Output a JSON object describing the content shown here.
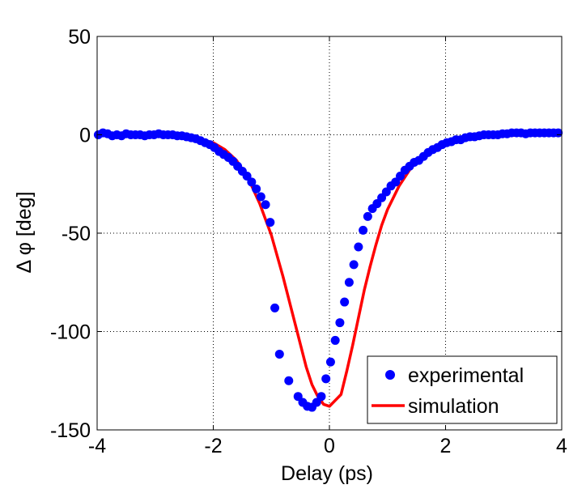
{
  "chart_data": {
    "type": "line",
    "title": "",
    "xlabel": "Delay (ps)",
    "ylabel": "Δ φ [deg]",
    "xlim": [
      -4,
      4
    ],
    "ylim": [
      -150,
      50
    ],
    "xticks": [
      -4,
      -2,
      0,
      2,
      4
    ],
    "yticks": [
      50,
      0,
      -50,
      -100,
      -150
    ],
    "grid": true,
    "legend_position": "bottom-right",
    "colors": {
      "experimental": "#0000ff",
      "simulation": "#ff0000"
    },
    "series": [
      {
        "name": "experimental",
        "style": "markers",
        "x": [
          -3.98,
          -3.9,
          -3.82,
          -3.74,
          -3.66,
          -3.58,
          -3.5,
          -3.42,
          -3.34,
          -3.26,
          -3.18,
          -3.1,
          -3.02,
          -2.94,
          -2.86,
          -2.78,
          -2.7,
          -2.62,
          -2.54,
          -2.46,
          -2.38,
          -2.3,
          -2.22,
          -2.14,
          -2.06,
          -1.98,
          -1.9,
          -1.82,
          -1.74,
          -1.66,
          -1.58,
          -1.5,
          -1.42,
          -1.34,
          -1.26,
          -1.18,
          -1.1,
          -1.02,
          -0.94,
          -0.86,
          -0.7,
          -0.54,
          -0.46,
          -0.38,
          -0.3,
          -0.22,
          -0.14,
          -0.06,
          0.02,
          0.1,
          0.18,
          0.26,
          0.34,
          0.42,
          0.5,
          0.58,
          0.66,
          0.74,
          0.82,
          0.9,
          0.98,
          1.06,
          1.14,
          1.22,
          1.3,
          1.38,
          1.46,
          1.54,
          1.62,
          1.7,
          1.78,
          1.86,
          1.94,
          2.02,
          2.1,
          2.18,
          2.26,
          2.34,
          2.42,
          2.5,
          2.58,
          2.66,
          2.74,
          2.82,
          2.9,
          2.98,
          3.06,
          3.14,
          3.22,
          3.3,
          3.38,
          3.46,
          3.54,
          3.62,
          3.7,
          3.78,
          3.86,
          3.94
        ],
        "y": [
          0,
          1,
          0.5,
          -0.5,
          0,
          -0.5,
          0.5,
          0,
          0,
          0,
          -0.5,
          0,
          0,
          0.5,
          0,
          0,
          0,
          -0.5,
          -0.5,
          -1,
          -1.5,
          -2,
          -3,
          -4,
          -5,
          -6.5,
          -8.5,
          -10,
          -11.5,
          -13.5,
          -16,
          -18.5,
          -21,
          -24,
          -27.5,
          -31.5,
          -35.5,
          -44.5,
          -88,
          -111.5,
          -125,
          -133,
          -136,
          -138,
          -138.5,
          -136,
          -133,
          -124,
          -115.5,
          -104.5,
          -95.5,
          -85,
          -75,
          -66,
          -57,
          -48.5,
          -41.5,
          -37.5,
          -35,
          -32,
          -29,
          -26,
          -24,
          -21,
          -18,
          -16,
          -14,
          -13,
          -11,
          -9,
          -7.5,
          -6.5,
          -5,
          -4,
          -3.5,
          -2.5,
          -2.5,
          -1.5,
          -1,
          -1,
          -0.5,
          0,
          0,
          0,
          0,
          0.5,
          0.5,
          1,
          1,
          1,
          0.5,
          1,
          1,
          1,
          1,
          1,
          1,
          1
        ]
      },
      {
        "name": "simulation",
        "style": "line",
        "x": [
          -4.0,
          -3.5,
          -3.0,
          -2.5,
          -2.2,
          -2.0,
          -1.8,
          -1.6,
          -1.4,
          -1.2,
          -1.0,
          -0.8,
          -0.6,
          -0.4,
          -0.3,
          -0.2,
          -0.1,
          0.0,
          0.1,
          0.2,
          0.3,
          0.4,
          0.5,
          0.6,
          0.7,
          0.8,
          0.9,
          1.0,
          1.2,
          1.4,
          1.6,
          1.8,
          2.0,
          2.2,
          2.5,
          3.0,
          3.5,
          4.0
        ],
        "y": [
          0,
          0,
          -0.5,
          -1,
          -2.5,
          -4,
          -7.5,
          -13,
          -22,
          -35,
          -51,
          -72,
          -95,
          -118,
          -127,
          -133,
          -137,
          -138,
          -135,
          -132,
          -120,
          -107,
          -93,
          -79,
          -67,
          -56,
          -46,
          -38,
          -26,
          -17,
          -11,
          -7,
          -4.5,
          -3,
          -1.5,
          -0.5,
          0,
          0
        ]
      }
    ]
  }
}
